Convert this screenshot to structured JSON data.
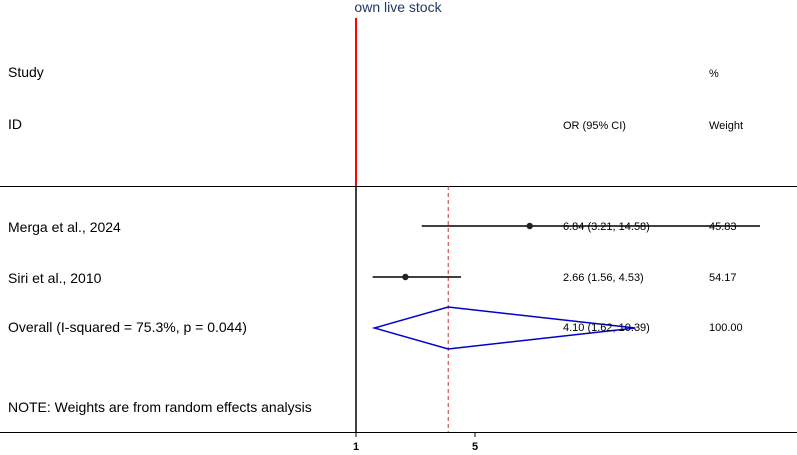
{
  "chart_data": {
    "type": "forest",
    "title": "own live stock",
    "header": {
      "study": "Study",
      "id": "ID",
      "or_ci": "OR (95% CI)",
      "weight_symbol": "%",
      "weight": "Weight"
    },
    "studies": [
      {
        "label": "Merga et al., 2024",
        "or": 6.84,
        "lo": 3.21,
        "hi": 14.58,
        "or_text": "6.84 (3.21, 14.58)",
        "weight_text": "45.83"
      },
      {
        "label": "Siri et al., 2010",
        "or": 2.66,
        "lo": 1.56,
        "hi": 4.53,
        "or_text": "2.66 (1.56, 4.53)",
        "weight_text": "54.17"
      }
    ],
    "overall": {
      "label": "Overall  (I-squared = 75.3%, p = 0.044)",
      "or": 4.1,
      "lo": 1.62,
      "hi": 10.39,
      "or_text": "4.10 (1.62, 10.39)",
      "weight_text": "100.00"
    },
    "note": "NOTE: Weights are from random effects analysis",
    "x_ticks": [
      {
        "value": 1,
        "label": "1"
      },
      {
        "value": 5,
        "label": "5"
      }
    ],
    "null_line": 1,
    "colors": {
      "null_line": "#ff0000",
      "diamond": "#0000cc",
      "overall_line": "#cc3333",
      "ci": "#000000",
      "title": "#1f3864"
    }
  }
}
